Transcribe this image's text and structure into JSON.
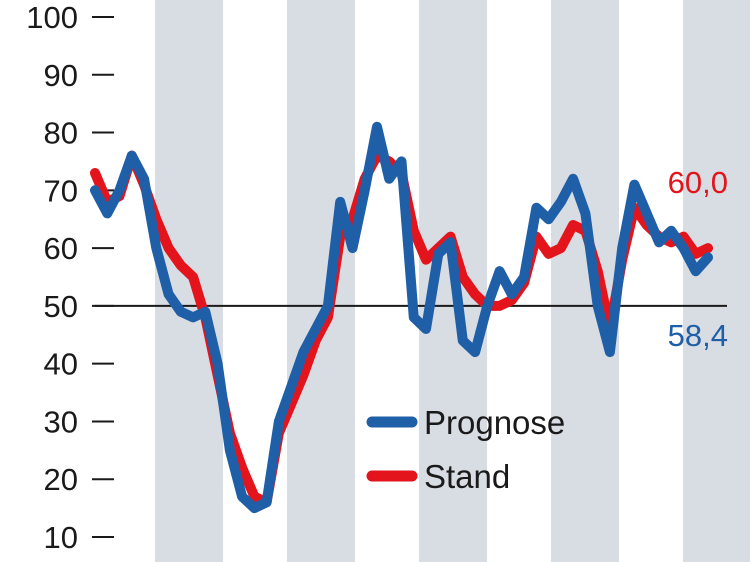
{
  "chart_data": {
    "type": "line",
    "title": "",
    "xlabel": "",
    "ylabel": "",
    "ylim": [
      10,
      100
    ],
    "yticks": [
      "10",
      "20",
      "30",
      "40",
      "50",
      "60",
      "70",
      "80",
      "90",
      "100"
    ],
    "reference_line": 50,
    "shaded_bands": 5,
    "legend_position": "center-bottom",
    "series": [
      {
        "name": "Prognose",
        "color": "#1f5fa8",
        "end_label": "58,4",
        "values": [
          70,
          66,
          70,
          76,
          72,
          60,
          52,
          49,
          48,
          49,
          40,
          25,
          17,
          15,
          16,
          30,
          36,
          42,
          46,
          50,
          68,
          60,
          70,
          81,
          72,
          75,
          48,
          46,
          59,
          61,
          44,
          42,
          50,
          56,
          52,
          55,
          67,
          65,
          68,
          72,
          66,
          50,
          42,
          60,
          71,
          66,
          61,
          63,
          60,
          56,
          58.4
        ]
      },
      {
        "name": "Stand",
        "color": "#e3141c",
        "end_label": "60,0",
        "values": [
          73,
          68,
          69,
          76,
          71,
          65,
          60,
          57,
          55,
          48,
          38,
          28,
          22,
          17,
          16,
          28,
          33,
          38,
          44,
          48,
          62,
          65,
          72,
          76,
          75,
          73,
          63,
          58,
          60,
          62,
          55,
          52,
          50,
          50,
          51,
          54,
          62,
          59,
          60,
          64,
          63,
          56,
          46,
          58,
          67,
          64,
          62,
          61,
          62,
          59,
          60.0
        ]
      }
    ]
  }
}
